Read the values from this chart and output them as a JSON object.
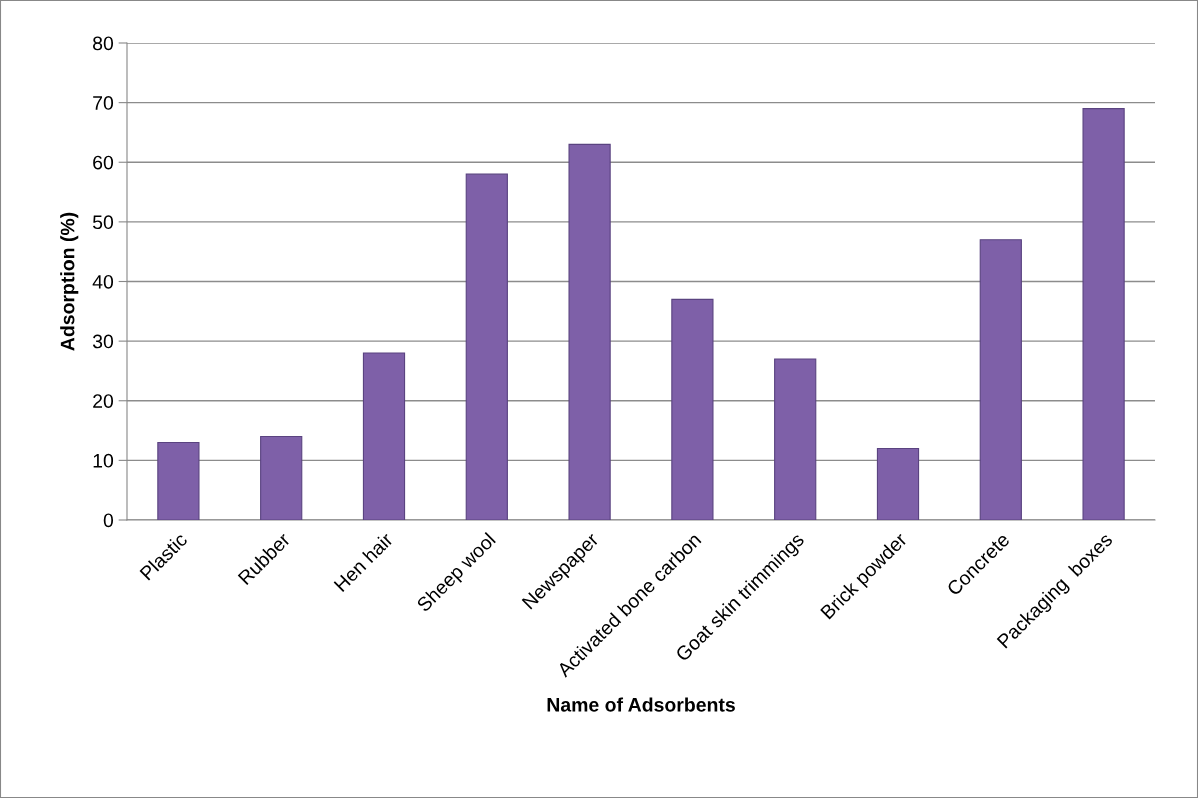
{
  "chart_data": {
    "type": "bar",
    "xlabel": "Name of Adsorbents",
    "ylabel": "Adsorption (%)",
    "categories": [
      "Plastic",
      "Rubber",
      "Hen hair",
      "Sheep wool",
      "Newspaper",
      "Activated bone carbon",
      "Goat skin trimmings",
      "Brick powder",
      "Concrete",
      "Packaging  boxes"
    ],
    "values": [
      13,
      14,
      28,
      58,
      63,
      37,
      27,
      12,
      47,
      69
    ],
    "color": "#7e60a8",
    "ylim": [
      0,
      80
    ],
    "yticks": [
      0,
      10,
      20,
      30,
      40,
      50,
      60,
      70,
      80
    ],
    "grid": "y",
    "legend": false
  }
}
